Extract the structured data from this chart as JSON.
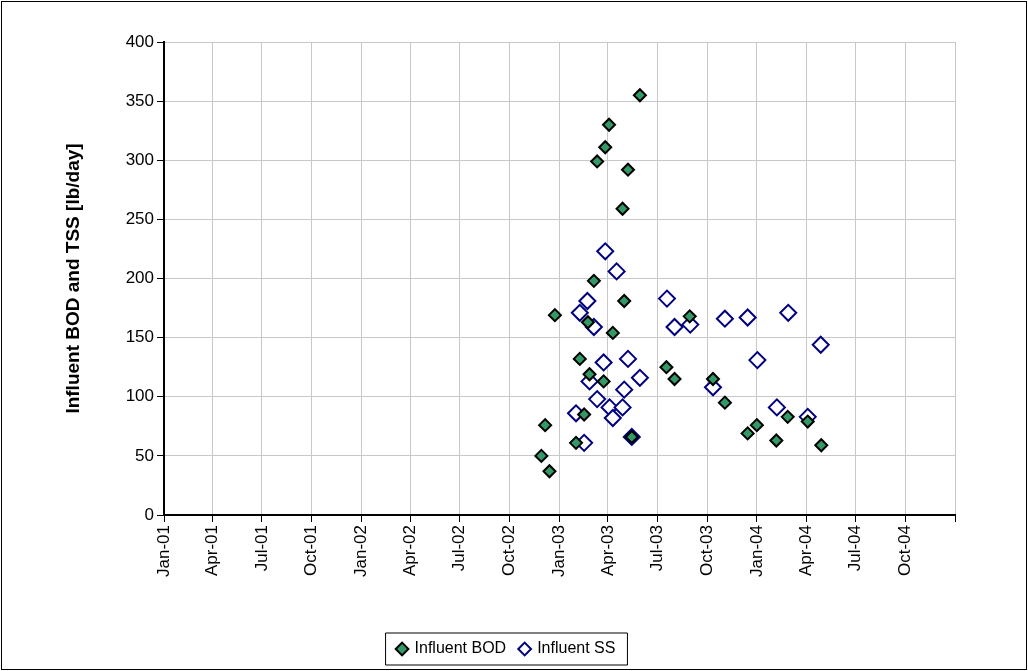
{
  "chart_data": {
    "type": "scatter",
    "ylabel": "Influent BOD and TSS [lb/day]",
    "xlim": [
      "2001-01-01",
      "2005-01-01"
    ],
    "xticks": [
      {
        "value": "2001-01-01",
        "label": "Jan-01"
      },
      {
        "value": "2001-04-01",
        "label": "Apr-01"
      },
      {
        "value": "2001-07-01",
        "label": "Jul-01"
      },
      {
        "value": "2001-10-01",
        "label": "Oct-01"
      },
      {
        "value": "2002-01-01",
        "label": "Jan-02"
      },
      {
        "value": "2002-04-01",
        "label": "Apr-02"
      },
      {
        "value": "2002-07-01",
        "label": "Jul-02"
      },
      {
        "value": "2002-10-01",
        "label": "Oct-02"
      },
      {
        "value": "2003-01-01",
        "label": "Jan-03"
      },
      {
        "value": "2003-04-01",
        "label": "Apr-03"
      },
      {
        "value": "2003-07-01",
        "label": "Jul-03"
      },
      {
        "value": "2003-10-01",
        "label": "Oct-03"
      },
      {
        "value": "2004-01-01",
        "label": "Jan-04"
      },
      {
        "value": "2004-04-01",
        "label": "Apr-04"
      },
      {
        "value": "2004-07-01",
        "label": "Jul-04"
      },
      {
        "value": "2004-10-01",
        "label": "Oct-04"
      },
      {
        "value": "2005-01-01",
        "label": null
      }
    ],
    "ylim": [
      0,
      400
    ],
    "yticks": [
      0,
      50,
      100,
      150,
      200,
      250,
      300,
      350,
      400
    ],
    "grid": true,
    "legend": "bottom",
    "marker": "diamond",
    "series": [
      {
        "name": "Influent BOD",
        "color": "#339966",
        "x": [
          "2002-11-29",
          "2002-12-06",
          "2002-12-14",
          "2002-12-24",
          "2003-02-01",
          "2003-02-08",
          "2003-02-16",
          "2003-02-23",
          "2003-02-26",
          "2003-03-06",
          "2003-03-12",
          "2003-03-24",
          "2003-03-27",
          "2003-04-03",
          "2003-04-10",
          "2003-04-28",
          "2003-05-01",
          "2003-05-08",
          "2003-05-15",
          "2003-05-30",
          "2003-07-18",
          "2003-08-02",
          "2003-08-30",
          "2003-10-12",
          "2003-11-03",
          "2003-12-15",
          "2004-01-01",
          "2004-02-06",
          "2004-02-27",
          "2004-04-04",
          "2004-04-29"
        ],
        "values": [
          50,
          76,
          37,
          169,
          61,
          132,
          85,
          163,
          119,
          198,
          299,
          113,
          311,
          330,
          154,
          259,
          181,
          292,
          66,
          355,
          125,
          115,
          168,
          115,
          95,
          69,
          76,
          63,
          83,
          79,
          59
        ]
      },
      {
        "name": "Influent SS",
        "color": "#000080",
        "x": [
          "2003-02-01",
          "2003-02-08",
          "2003-02-16",
          "2003-02-22",
          "2003-02-26",
          "2003-03-06",
          "2003-03-12",
          "2003-03-24",
          "2003-03-27",
          "2003-04-04",
          "2003-04-10",
          "2003-04-17",
          "2003-04-28",
          "2003-05-01",
          "2003-05-08",
          "2003-05-15",
          "2003-05-30",
          "2003-07-19",
          "2003-08-02",
          "2003-08-31",
          "2003-10-12",
          "2003-11-03",
          "2003-12-15",
          "2004-01-02",
          "2004-02-07",
          "2004-02-28",
          "2004-04-04",
          "2004-04-28"
        ],
        "values": [
          86,
          171,
          61,
          181,
          113,
          159,
          98,
          129,
          223,
          91,
          82,
          206,
          91,
          106,
          132,
          66,
          116,
          183,
          159,
          161,
          108,
          166,
          167,
          131,
          91,
          171,
          83,
          144
        ]
      }
    ]
  }
}
